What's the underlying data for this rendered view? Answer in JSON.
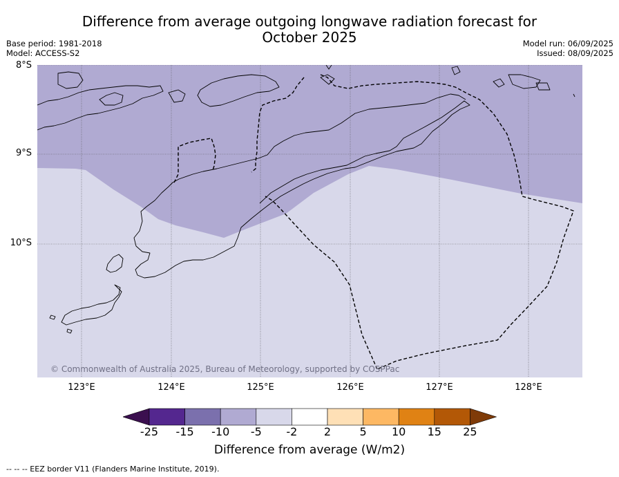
{
  "title": {
    "line1": "Difference from average outgoing longwave radiation forecast for",
    "line2": "October 2025"
  },
  "meta": {
    "base_period": "Base period: 1981-2018",
    "model": "Model: ACCESS-S2",
    "model_run": "Model run: 06/09/2025",
    "issued": "Issued: 08/09/2025"
  },
  "map": {
    "lat_labels": [
      "8°S",
      "9°S",
      "10°S"
    ],
    "lon_labels": [
      "123°E",
      "124°E",
      "125°E",
      "126°E",
      "127°E",
      "128°E"
    ],
    "lat_range": [
      -11.5,
      -8.0
    ],
    "lon_range": [
      122.5,
      128.6
    ],
    "copyright": "© Commonwealth of Australia 2025, Bureau of Meteorology, supported by COSPPac",
    "fill_colors": {
      "minus_10_to_minus_5": "#b0aad2",
      "minus_5_to_minus_2": "#d8d8ea"
    },
    "eez_line_style": "dashed"
  },
  "colorbar": {
    "tick_labels": [
      "-25",
      "-15",
      "-10",
      "-5",
      "-2",
      "2",
      "5",
      "10",
      "15",
      "25"
    ],
    "colors": [
      "#3b0f4f",
      "#54278f",
      "#7b70ad",
      "#b0aad2",
      "#d8d8ea",
      "#ffffff",
      "#fee0b6",
      "#fdb863",
      "#e08214",
      "#b35806",
      "#7f3b08"
    ],
    "label": "Difference from average (W/m2)"
  },
  "footer": "--  --  -- EEZ border V11 (Flanders Marine Institute, 2019)."
}
